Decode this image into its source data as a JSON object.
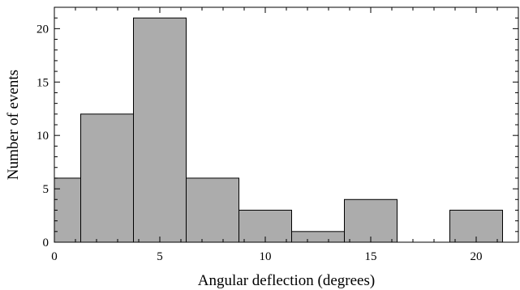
{
  "chart_data": {
    "type": "bar",
    "title": "",
    "xlabel": "Angular deflection (degrees)",
    "ylabel": "Number of events",
    "xlim": [
      0,
      22
    ],
    "ylim": [
      0,
      22
    ],
    "x_ticks": [
      0,
      5,
      10,
      15,
      20
    ],
    "y_ticks": [
      0,
      5,
      10,
      15,
      20
    ],
    "grid": false,
    "bins": [
      {
        "start": -1.25,
        "end": 1.25,
        "value": 6
      },
      {
        "start": 1.25,
        "end": 3.75,
        "value": 12
      },
      {
        "start": 3.75,
        "end": 6.25,
        "value": 21
      },
      {
        "start": 6.25,
        "end": 8.75,
        "value": 6
      },
      {
        "start": 8.75,
        "end": 11.25,
        "value": 3
      },
      {
        "start": 11.25,
        "end": 13.75,
        "value": 1
      },
      {
        "start": 13.75,
        "end": 16.25,
        "value": 4
      },
      {
        "start": 16.25,
        "end": 18.75,
        "value": 0
      },
      {
        "start": 18.75,
        "end": 21.25,
        "value": 3
      }
    ],
    "colors": {
      "bar_fill": "#acacac",
      "bar_stroke": "#000000"
    }
  }
}
